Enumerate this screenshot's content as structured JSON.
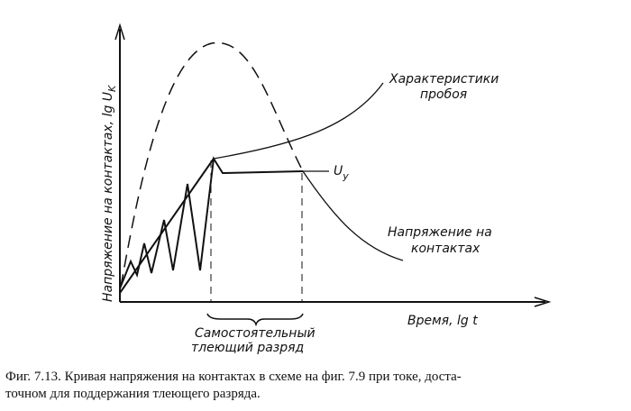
{
  "figure": {
    "y_axis_label": "Напряжение на контактах, lg U",
    "y_axis_subscript": "K",
    "x_axis_label": "Время, lg t",
    "breakdown_label": [
      "Характеристики",
      "пробоя"
    ],
    "steady_label": "U",
    "steady_subscript": "у",
    "contact_label": [
      "Напряжение на",
      "контактах"
    ],
    "glow_label": [
      "Самостоятельный",
      "тлеющий разряд"
    ]
  },
  "caption": [
    "Фиг. 7.13. Кривая напряжения на контактах в схеме на фиг. 7.9 при токе, доста-",
    "точном для поддержания тлеющего разряда."
  ]
}
